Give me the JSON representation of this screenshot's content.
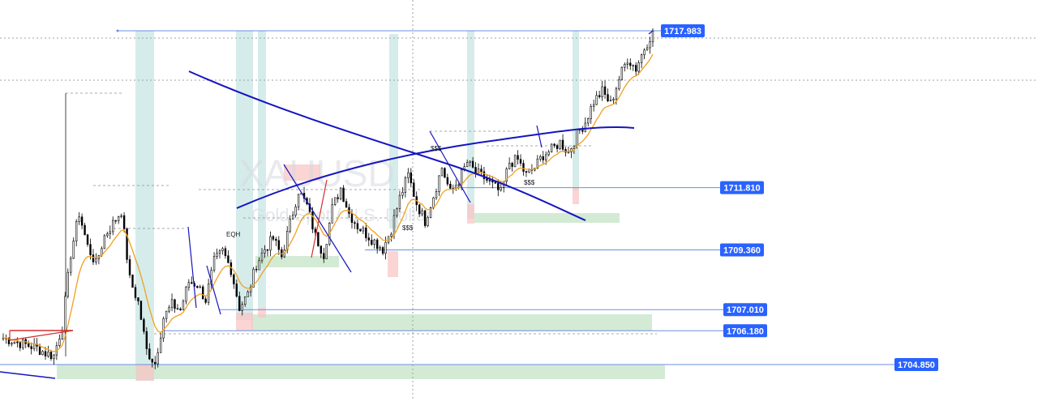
{
  "chart_data": {
    "type": "candlestick",
    "symbol": "XAUUSD",
    "description": "Gold Spot / U.S. Dollar",
    "ylim": [
      1704.2,
      1718.2
    ],
    "price_labels": [
      "1717.983",
      "1711.810",
      "1709.360",
      "1707.010",
      "1706.180",
      "1704.850"
    ],
    "price_levels": [
      1717.983,
      1711.81,
      1709.36,
      1707.01,
      1706.18,
      1704.85
    ],
    "annotations": [
      "EQH",
      "$$$",
      "$$$",
      "$$$"
    ],
    "close_path": [
      1705.9,
      1705.8,
      1705.7,
      1705.6,
      1705.5,
      1705.3,
      1705.2,
      1706.4,
      1709.2,
      1710.8,
      1709.5,
      1708.8,
      1709.9,
      1710.4,
      1710.9,
      1708.2,
      1707.3,
      1705.4,
      1704.9,
      1706.7,
      1707.2,
      1707.0,
      1708.1,
      1708.0,
      1707.4,
      1708.9,
      1709.3,
      1708.6,
      1707.1,
      1707.6,
      1708.8,
      1709.4,
      1709.8,
      1709.1,
      1710.4,
      1711.7,
      1711.1,
      1709.9,
      1709.2,
      1711.0,
      1711.8,
      1710.8,
      1710.3,
      1710.0,
      1709.7,
      1709.4,
      1710.2,
      1711.4,
      1712.3,
      1711.2,
      1710.5,
      1711.5,
      1712.6,
      1711.6,
      1712.1,
      1712.8,
      1712.4,
      1712.2,
      1711.9,
      1711.6,
      1712.8,
      1712.9,
      1712.3,
      1712.6,
      1713.1,
      1713.3,
      1713.6,
      1713.2,
      1713.9,
      1714.4,
      1715.2,
      1715.6,
      1715.1,
      1716.1,
      1716.9,
      1716.5,
      1717.3,
      1717.98
    ],
    "trendlines": 3
  },
  "colors": {
    "candle": "#000000",
    "ma": "#f0a020",
    "curve": "#1515c0",
    "price_line": "#6b8fe0",
    "label_bg": "#2962ff",
    "demand": "#c8e6c9",
    "supply": "#f9c5c5",
    "teal_zone": "#cbe7e6",
    "swing_red": "#d32f2f"
  }
}
